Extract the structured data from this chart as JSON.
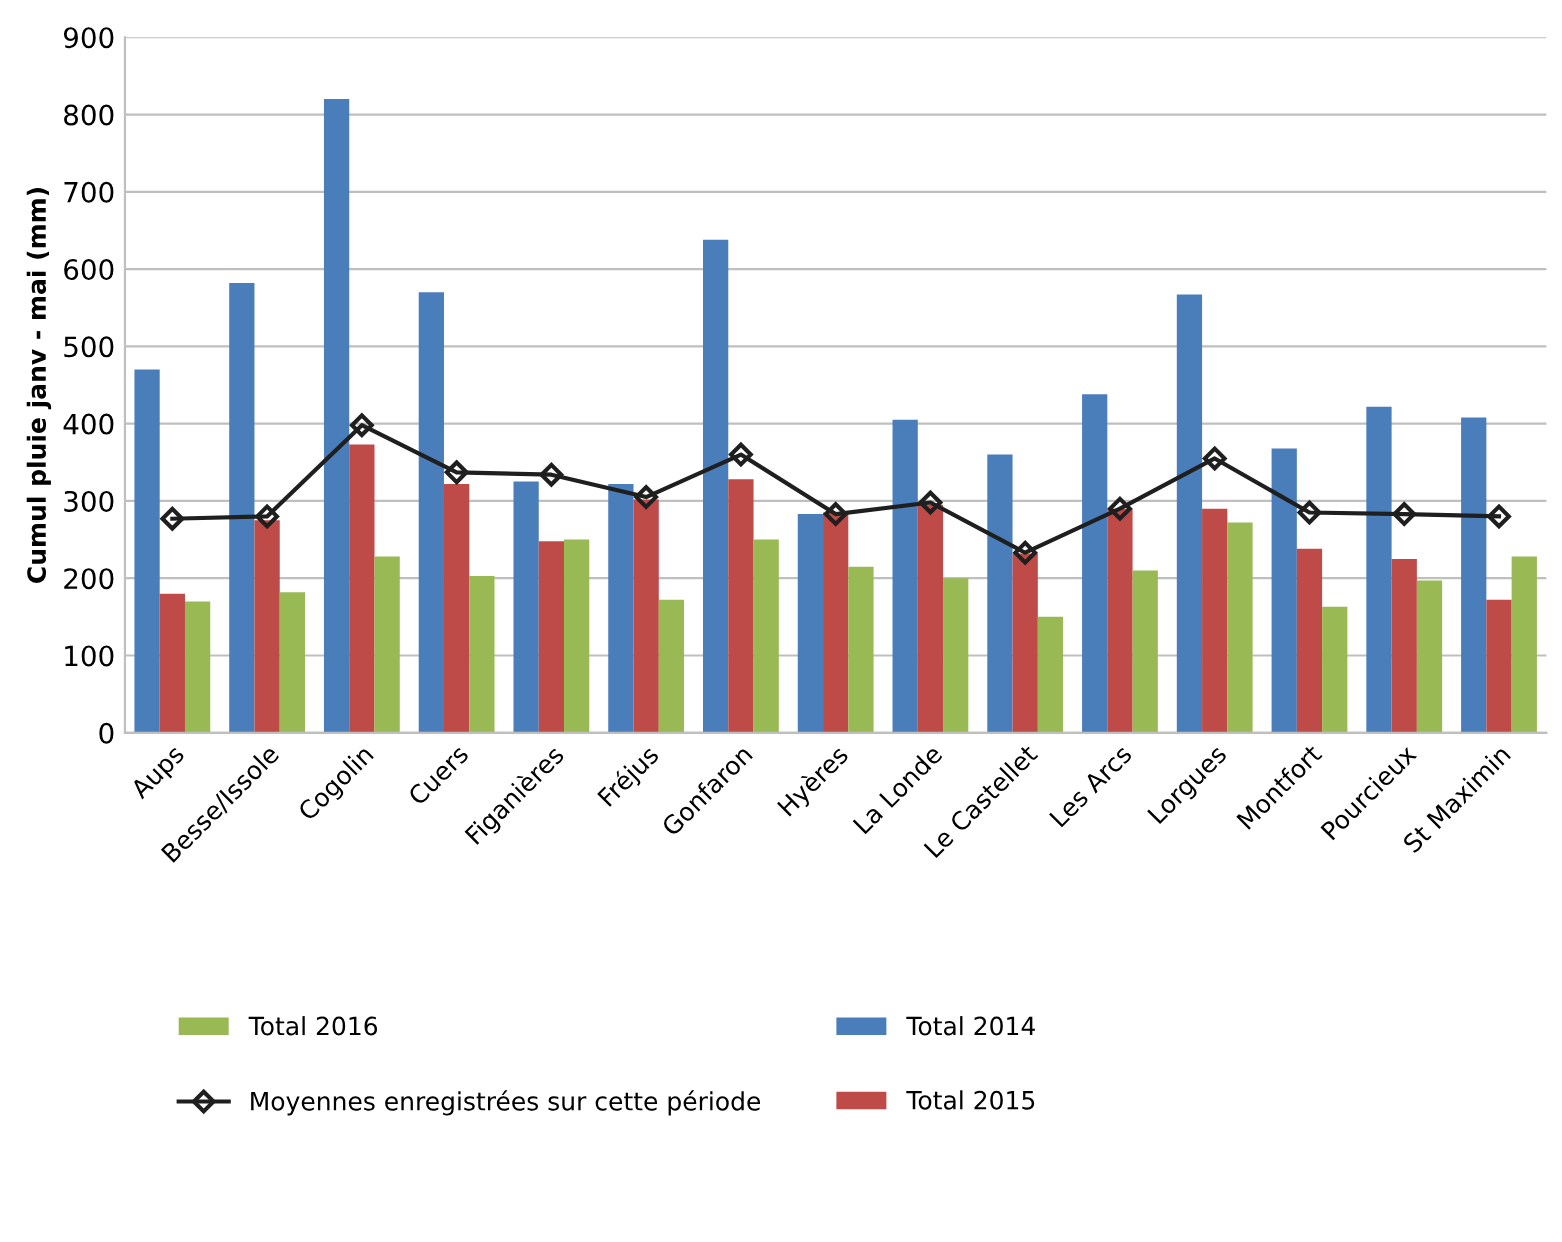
{
  "chart_data": {
    "type": "bar",
    "ylabel": "Cumul pluie janv - mai (mm)",
    "categories": [
      "Aups",
      "Besse/Issole",
      "Cogolin",
      "Cuers",
      "Figanières",
      "Fréjus",
      "Gonfaron",
      "Hyères",
      "La Londe",
      "Le Castellet",
      "Les Arcs",
      "Lorgues",
      "Montfort",
      "Pourcieux",
      "St Maximin"
    ],
    "series": [
      {
        "name": "Total 2014",
        "color": "#4a7ebb",
        "values": [
          470,
          582,
          820,
          570,
          325,
          322,
          638,
          283,
          405,
          360,
          438,
          567,
          368,
          422,
          408
        ]
      },
      {
        "name": "Total 2015",
        "color": "#be4b48",
        "values": [
          180,
          275,
          373,
          322,
          248,
          302,
          328,
          285,
          295,
          232,
          290,
          290,
          238,
          225,
          172
        ]
      },
      {
        "name": "Total 2016",
        "color": "#98b954",
        "values": [
          170,
          182,
          228,
          203,
          250,
          172,
          250,
          215,
          200,
          150,
          210,
          272,
          163,
          197,
          228
        ]
      },
      {
        "name": "Moyennes enregistrées sur cette période",
        "color": "#1f1f1f",
        "type": "line",
        "marker": "diamond",
        "values": [
          277,
          280,
          398,
          337,
          334,
          305,
          360,
          283,
          298,
          233,
          290,
          355,
          285,
          283,
          280
        ]
      }
    ],
    "ylim": [
      0,
      900
    ],
    "yticks": [
      0,
      100,
      200,
      300,
      400,
      500,
      600,
      700,
      800,
      900
    ],
    "grid": "y",
    "legend": "bottom left"
  }
}
